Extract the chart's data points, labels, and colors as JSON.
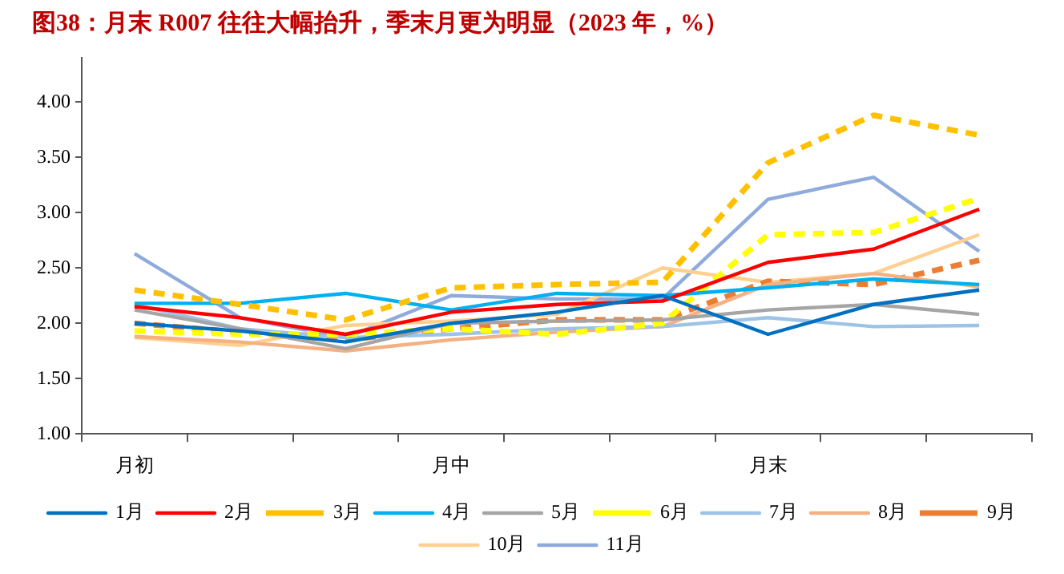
{
  "chart_data": {
    "type": "line",
    "title": "图38：月末 R007 往往大幅抬升，季末月更为明显（2023 年，%）",
    "categories": [
      "月初",
      null,
      null,
      "月中",
      null,
      null,
      "月末",
      null,
      null
    ],
    "ylim": [
      1,
      4.4
    ],
    "yticks": [
      {
        "value": 1,
        "label": "1.00"
      },
      {
        "value": 1.5,
        "label": "1.50"
      },
      {
        "value": 2,
        "label": "2.00"
      },
      {
        "value": 2.5,
        "label": "2.50"
      },
      {
        "value": 3,
        "label": "3.00"
      },
      {
        "value": 3.5,
        "label": "3.50"
      },
      {
        "value": 4,
        "label": "4.00"
      }
    ],
    "grid": false,
    "legend": "bottom",
    "marker": "none",
    "series": [
      {
        "name": "1月",
        "color": "#0070c0",
        "values": [
          2.0,
          1.93,
          1.83,
          2.0,
          2.1,
          2.25,
          1.9,
          2.17,
          2.3
        ]
      },
      {
        "name": "2月",
        "color": "#ff0000",
        "values": [
          2.15,
          2.05,
          1.9,
          2.1,
          2.17,
          2.2,
          2.55,
          2.67,
          3.03
        ]
      },
      {
        "name": "3月",
        "color": "#ffc000",
        "line_style": "dashed",
        "values": [
          2.3,
          2.17,
          2.03,
          2.32,
          2.35,
          2.37,
          3.45,
          3.88,
          3.7
        ]
      },
      {
        "name": "4月",
        "color": "#00b0f0",
        "values": [
          2.18,
          2.18,
          2.27,
          2.12,
          2.27,
          2.25,
          2.32,
          2.4,
          2.35
        ]
      },
      {
        "name": "5月",
        "color": "#a5a5a5",
        "values": [
          2.12,
          1.95,
          1.77,
          2.0,
          2.02,
          2.03,
          2.12,
          2.17,
          2.08
        ]
      },
      {
        "name": "6月",
        "color": "#ffff00",
        "line_style": "dashed",
        "values": [
          1.93,
          1.9,
          1.9,
          1.95,
          1.9,
          2.0,
          2.8,
          2.82,
          3.13
        ]
      },
      {
        "name": "7月",
        "color": "#9dc3e6",
        "values": [
          2.17,
          1.95,
          1.87,
          1.9,
          1.95,
          1.97,
          2.05,
          1.97,
          1.98
        ]
      },
      {
        "name": "8月",
        "color": "#f4b183",
        "values": [
          1.88,
          1.83,
          1.75,
          1.85,
          1.92,
          1.97,
          2.35,
          2.45,
          2.33
        ]
      },
      {
        "name": "9月",
        "color": "#ed7d31",
        "line_style": "dashed",
        "values": [
          2.0,
          1.92,
          1.85,
          1.95,
          2.03,
          2.03,
          2.38,
          2.35,
          2.57
        ]
      },
      {
        "name": "10月",
        "color": "#ffd08f",
        "values": [
          1.87,
          1.8,
          1.98,
          2.02,
          2.08,
          2.5,
          2.37,
          2.45,
          2.8
        ]
      },
      {
        "name": "11月",
        "color": "#8faadc",
        "values": [
          2.63,
          2.05,
          1.87,
          2.25,
          2.22,
          2.22,
          3.12,
          3.32,
          2.65
        ]
      }
    ]
  }
}
